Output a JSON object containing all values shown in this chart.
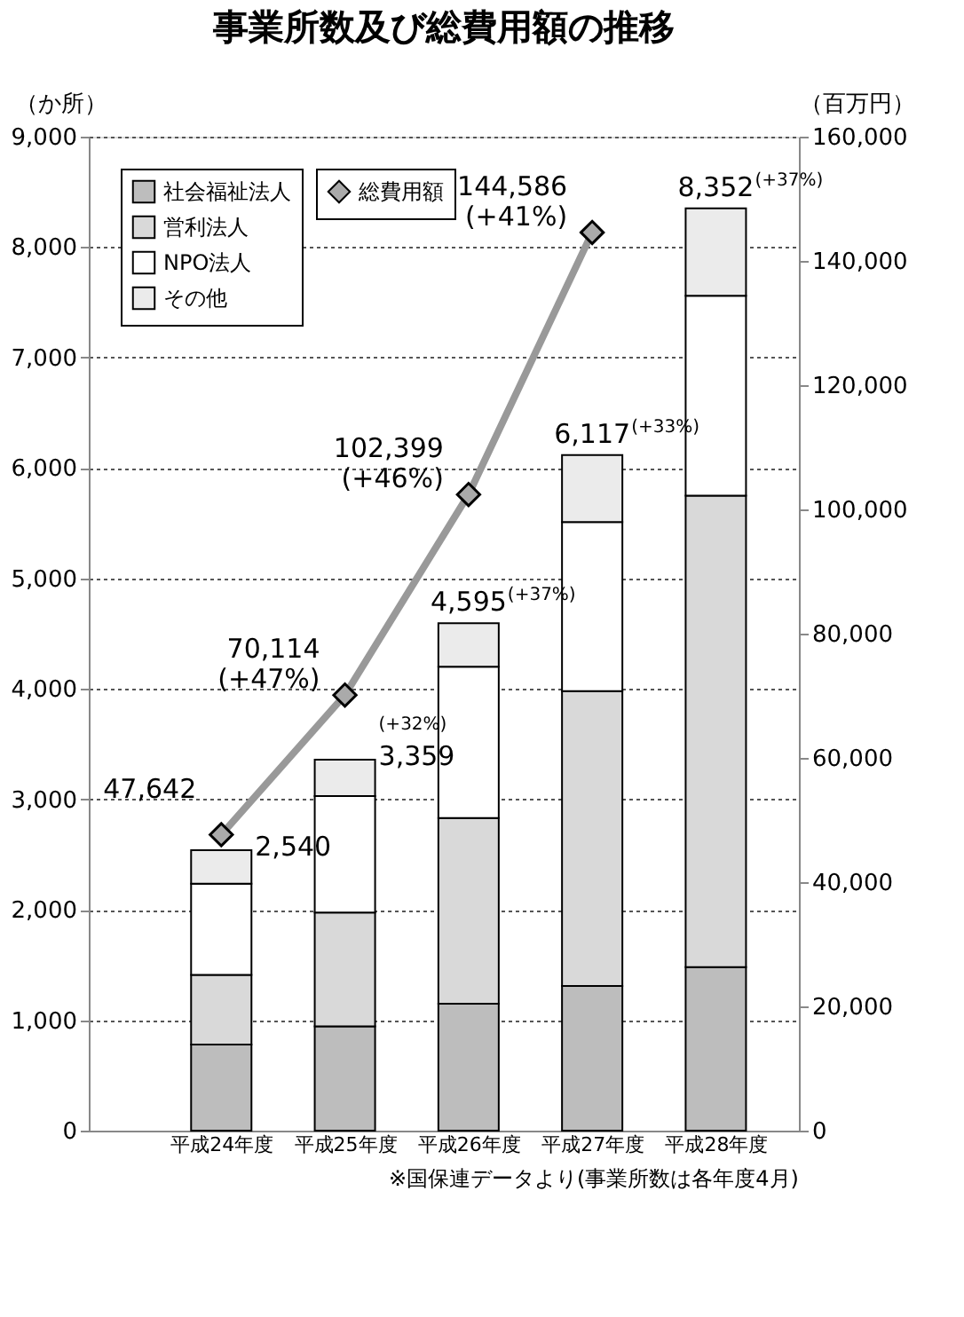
{
  "chart_data": {
    "type": "bar",
    "stacked": true,
    "title": "事業所数及び総費用額の推移",
    "ylabel": "（か所）",
    "y2label": "（百万円）",
    "categories": [
      "平成24年度",
      "平成25年度",
      "平成26年度",
      "平成27年度",
      "平成28年度"
    ],
    "series": [
      {
        "name": "社会福祉法人",
        "color": "#bdbdbd",
        "values": [
          780,
          945,
          1150,
          1310,
          1480
        ]
      },
      {
        "name": "営利法人",
        "color": "#d9d9d9",
        "values": [
          630,
          1030,
          1680,
          2670,
          4270
        ]
      },
      {
        "name": "NPO法人",
        "color": "#ffffff",
        "values": [
          825,
          1055,
          1370,
          1530,
          1810
        ]
      },
      {
        "name": "その他",
        "color": "#ebebeb",
        "values": [
          305,
          329,
          395,
          607,
          792
        ]
      },
      {
        "name": "総費用額",
        "type": "line",
        "axis": "y2",
        "color": "#999999",
        "marker": "diamond",
        "values": [
          47642,
          70114,
          102399,
          144586,
          null
        ],
        "value_labels": [
          "47,642",
          "70,114\n(+47%)",
          "102,399\n(+46%)",
          "144,586\n(+41%)",
          null
        ]
      }
    ],
    "totals": [
      "2,540",
      "3,359",
      "4,595",
      "6,117",
      "8,352"
    ],
    "annotations": [
      {
        "text": "(+32%)",
        "x": "平成25年度",
        "y": 3359
      },
      {
        "text": "(+37%)",
        "x": "平成26年度",
        "y": 4595
      },
      {
        "text": "(+33%)",
        "x": "平成27年度",
        "y": 6117
      },
      {
        "text": "(+37%)",
        "x": "平成28年度",
        "y": 8352
      },
      "※国保連データより(事業所数は各年度4月)"
    ],
    "ylim": [
      0,
      9000
    ],
    "yticks": [
      0,
      {
        "value": 1000,
        "label": "1,000"
      },
      {
        "value": 2000,
        "label": "2,000"
      },
      {
        "value": 3000,
        "label": "3,000"
      },
      {
        "value": 4000,
        "label": "4,000"
      },
      {
        "value": 5000,
        "label": "5,000"
      },
      {
        "value": 6000,
        "label": "6,000"
      },
      {
        "value": 7000,
        "label": "7,000"
      },
      {
        "value": 8000,
        "label": "8,000"
      },
      {
        "value": 9000,
        "label": "9,000"
      }
    ],
    "y2lim": [
      0,
      160000
    ],
    "y2ticks": [
      0,
      {
        "value": 20000,
        "label": "20,000"
      },
      {
        "value": 40000,
        "label": "40,000"
      },
      {
        "value": 60000,
        "label": "60,000"
      },
      {
        "value": 80000,
        "label": "80,000"
      },
      {
        "value": 100000,
        "label": "100,000"
      },
      {
        "value": 120000,
        "label": "120,000"
      },
      {
        "value": 140000,
        "label": "140,000"
      },
      {
        "value": 160000,
        "label": "160,000"
      }
    ],
    "grid": "y",
    "legend": "top left"
  }
}
